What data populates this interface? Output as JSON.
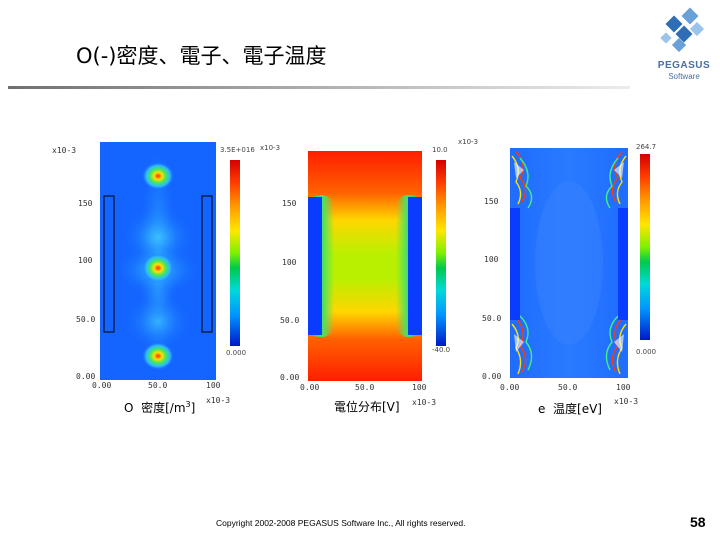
{
  "slide": {
    "title": "O(-)密度、電子、電子温度",
    "logo": {
      "name": "PEGASUS",
      "sub": "Software"
    },
    "footer": "Copyright 2002-2008 PEGASUS Software Inc., All rights reserved.",
    "page_number": "58"
  },
  "plots": [
    {
      "y_exp": "x10-3",
      "y_ticks": [
        "150",
        "100",
        "50.0",
        "0.00"
      ],
      "x_ticks": [
        "0.00",
        "50.0",
        "100"
      ],
      "x_exp": "x10-3",
      "cbar_max": "3.5E+016",
      "cbar_max_exp": "x10-3",
      "cbar_min": "0.000",
      "caption_prefix": "O",
      "caption": "密度[/m",
      "caption_sup": "3",
      "caption_close": "]"
    },
    {
      "y_exp": "",
      "y_ticks": [
        "150",
        "100",
        "50.0",
        "0.00"
      ],
      "x_ticks": [
        "0.00",
        "50.0",
        "100"
      ],
      "x_exp": "x10-3",
      "cbar_max": "10.0",
      "cbar_max_exp": "x10-3",
      "cbar_min": "-40.0",
      "caption_prefix": "",
      "caption": "電位分布[V]",
      "caption_sup": "",
      "caption_close": ""
    },
    {
      "y_exp": "",
      "y_ticks": [
        "150",
        "100",
        "50.0",
        "0.00"
      ],
      "x_ticks": [
        "0.00",
        "50.0",
        "100"
      ],
      "x_exp": "x10-3",
      "cbar_max": "264.7",
      "cbar_max_exp": "",
      "cbar_min": "0.000",
      "caption_prefix": "e",
      "caption": "温度[eV]",
      "caption_sup": "",
      "caption_close": ""
    }
  ],
  "colors": {
    "title_rule": "#8c8c8c",
    "jet_red": "#d40000",
    "jet_blue": "#0018c8"
  },
  "icons": [
    "pegasus-logo-icon"
  ]
}
